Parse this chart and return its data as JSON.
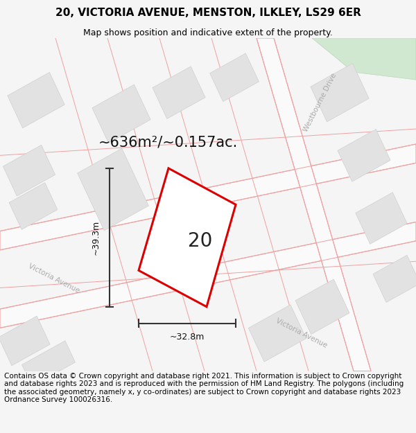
{
  "title": "20, VICTORIA AVENUE, MENSTON, ILKLEY, LS29 6ER",
  "subtitle": "Map shows position and indicative extent of the property.",
  "footer": "Contains OS data © Crown copyright and database right 2021. This information is subject to Crown copyright and database rights 2023 and is reproduced with the permission of HM Land Registry. The polygons (including the associated geometry, namely x, y co-ordinates) are subject to Crown copyright and database rights 2023 Ordnance Survey 100026316.",
  "area_label": "~636m²/~0.157ac.",
  "number_label": "20",
  "dim_width": "~32.8m",
  "dim_height": "~39.3m",
  "road_label_1": "Victoria Avenue",
  "road_label_2": "Victoria Avenue",
  "road_label_3": "Westbourne Drive",
  "map_bg": "#efefef",
  "plot_red": "#dd0000",
  "plot_fill": "#ffffff",
  "bldg_fill": "#e2e2e2",
  "bldg_edge": "#d0d0d0",
  "road_fill": "#fafafa",
  "road_pink": "#f0a0a0",
  "green_fill": "#d0e8d0",
  "green_edge": "#b8d8b8",
  "title_fontsize": 11,
  "subtitle_fontsize": 9,
  "footer_fontsize": 7.5,
  "label_color": "#111111",
  "road_text_color": "#aaaaaa",
  "dim_color": "#333333"
}
